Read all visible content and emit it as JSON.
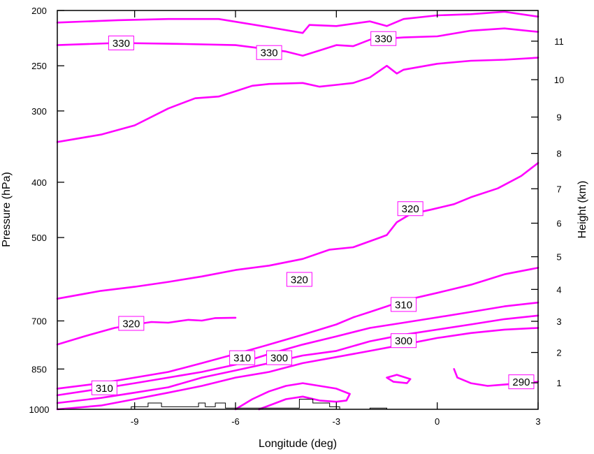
{
  "chart_data": {
    "type": "contour",
    "xlabel": "Longitude (deg)",
    "ylabel_left": "Pressure (hPa)",
    "ylabel_right": "Height (km)",
    "xlim": [
      -11.3,
      3
    ],
    "ylim_pressure": [
      1000,
      200
    ],
    "left_axis_scale": "log-pressure",
    "x_ticks": [
      -9,
      -6,
      -3,
      0,
      3
    ],
    "x_tick_labels": [
      "-9",
      "-6",
      "-3",
      "0",
      "3"
    ],
    "pressure_ticks": [
      200,
      250,
      300,
      400,
      500,
      700,
      850,
      1000
    ],
    "pressure_tick_labels": [
      "200",
      "250",
      "300",
      "400",
      "500",
      "700",
      "850",
      "1000"
    ],
    "height_ticks": [
      1,
      2,
      3,
      4,
      5,
      6,
      7,
      8,
      9,
      10,
      11
    ],
    "height_tick_labels": [
      "1",
      "2",
      "3",
      "4",
      "5",
      "6",
      "7",
      "8",
      "9",
      "10",
      "11"
    ],
    "contour_color": "#ff00ff",
    "terrain_color": "#000000",
    "contours": [
      {
        "value": 330,
        "label": null,
        "points": [
          [
            -11.3,
            210
          ],
          [
            -9.5,
            208
          ],
          [
            -8,
            207
          ],
          [
            -6.5,
            207
          ],
          [
            -5,
            214
          ],
          [
            -4,
            219
          ],
          [
            -3.8,
            212
          ],
          [
            -3,
            213
          ],
          [
            -2,
            209
          ],
          [
            -1.5,
            213
          ],
          [
            -1,
            207
          ],
          [
            0,
            204
          ],
          [
            1,
            203
          ],
          [
            2,
            201
          ],
          [
            3,
            205
          ]
        ]
      },
      {
        "value": 330,
        "label": "330",
        "label_at": [
          -9.4,
          228
        ],
        "label_at2": [
          -5,
          237
        ],
        "label_at3": [
          -1.6,
          224
        ],
        "points": [
          [
            -11.3,
            230
          ],
          [
            -9.5,
            228
          ],
          [
            -7.5,
            229
          ],
          [
            -6,
            230
          ],
          [
            -4.5,
            236
          ],
          [
            -4,
            240
          ],
          [
            -3.5,
            235
          ],
          [
            -3,
            230
          ],
          [
            -2.5,
            231
          ],
          [
            -2,
            225
          ],
          [
            -1,
            223
          ],
          [
            0,
            222
          ],
          [
            1,
            217
          ],
          [
            2,
            215
          ],
          [
            3,
            218
          ]
        ]
      },
      {
        "value": 320,
        "label": null,
        "points": [
          [
            -11.3,
            340
          ],
          [
            -10,
            330
          ],
          [
            -9,
            318
          ],
          [
            -8,
            297
          ],
          [
            -7.2,
            285
          ],
          [
            -6.5,
            283
          ],
          [
            -6,
            277
          ],
          [
            -5.5,
            271
          ],
          [
            -5,
            269
          ],
          [
            -4,
            268
          ],
          [
            -3.5,
            272
          ],
          [
            -3,
            270
          ],
          [
            -2.5,
            268
          ],
          [
            -2,
            262
          ],
          [
            -1.5,
            250
          ],
          [
            -1.2,
            258
          ],
          [
            -1,
            254
          ],
          [
            0,
            248
          ],
          [
            1,
            245
          ],
          [
            2,
            244
          ],
          [
            3,
            242
          ]
        ]
      },
      {
        "value": 320,
        "label": "320",
        "label_at": [
          -0.8,
          445
        ],
        "label_at2": [
          -4.1,
          592
        ],
        "points": [
          [
            -11.3,
            640
          ],
          [
            -10,
            620
          ],
          [
            -9,
            610
          ],
          [
            -8,
            598
          ],
          [
            -7,
            585
          ],
          [
            -6,
            570
          ],
          [
            -5,
            560
          ],
          [
            -4,
            545
          ],
          [
            -3.2,
            525
          ],
          [
            -2.5,
            520
          ],
          [
            -1.7,
            500
          ],
          [
            -1.5,
            495
          ],
          [
            -1.2,
            470
          ],
          [
            -0.8,
            455
          ],
          [
            -0.2,
            447
          ],
          [
            0.5,
            437
          ],
          [
            1,
            425
          ],
          [
            1.8,
            410
          ],
          [
            2.5,
            390
          ],
          [
            3,
            370
          ]
        ]
      },
      {
        "value": 320,
        "label": "320",
        "label_at": [
          -9.1,
          707
        ],
        "points": [
          [
            -11.3,
            770
          ],
          [
            -10.5,
            745
          ],
          [
            -9.6,
            720
          ],
          [
            -9,
            710
          ],
          [
            -8.5,
            703
          ],
          [
            -8,
            705
          ],
          [
            -7.4,
            697
          ],
          [
            -7,
            699
          ],
          [
            -6.6,
            692
          ],
          [
            -6,
            691
          ]
        ]
      },
      {
        "value": 310,
        "label": "310",
        "label_at": [
          -1,
          655
        ],
        "label_at2": [
          -5.8,
          812
        ],
        "label_at3": [
          -9.9,
          917
        ],
        "points": [
          [
            -11.3,
            920
          ],
          [
            -10,
            900
          ],
          [
            -9,
            880
          ],
          [
            -8,
            860
          ],
          [
            -7.5,
            845
          ],
          [
            -7,
            830
          ],
          [
            -6,
            800
          ],
          [
            -5,
            770
          ],
          [
            -4,
            740
          ],
          [
            -3,
            710
          ],
          [
            -2.5,
            690
          ],
          [
            -2,
            675
          ],
          [
            -1.5,
            660
          ],
          [
            -1,
            645
          ],
          [
            0,
            625
          ],
          [
            1,
            605
          ],
          [
            2,
            580
          ],
          [
            3,
            565
          ]
        ]
      },
      {
        "value": 310,
        "label": null,
        "points": [
          [
            -11.3,
            945
          ],
          [
            -10,
            920
          ],
          [
            -9,
            900
          ],
          [
            -8,
            880
          ],
          [
            -7,
            860
          ],
          [
            -6,
            835
          ],
          [
            -5,
            800
          ],
          [
            -4,
            770
          ],
          [
            -3,
            745
          ],
          [
            -2,
            720
          ],
          [
            -1,
            705
          ],
          [
            0,
            690
          ],
          [
            1,
            675
          ],
          [
            2,
            660
          ],
          [
            3,
            650
          ]
        ]
      },
      {
        "value": 300,
        "label": "300",
        "label_at": [
          -4.7,
          812
        ],
        "label_at2": [
          -1,
          758
        ],
        "points": [
          [
            -11.3,
            975
          ],
          [
            -10,
            955
          ],
          [
            -9,
            935
          ],
          [
            -8,
            915
          ],
          [
            -7,
            880
          ],
          [
            -6,
            855
          ],
          [
            -5,
            830
          ],
          [
            -4,
            805
          ],
          [
            -3,
            790
          ],
          [
            -2,
            760
          ],
          [
            -1,
            740
          ],
          [
            0,
            725
          ],
          [
            1,
            710
          ],
          [
            2,
            695
          ],
          [
            3,
            685
          ]
        ]
      },
      {
        "value": 300,
        "label": null,
        "points": [
          [
            -11.3,
            1000
          ],
          [
            -10,
            985
          ],
          [
            -9,
            960
          ],
          [
            -8,
            935
          ],
          [
            -7,
            910
          ],
          [
            -6,
            880
          ],
          [
            -5,
            860
          ],
          [
            -4,
            830
          ],
          [
            -3,
            810
          ],
          [
            -2,
            790
          ],
          [
            -1,
            770
          ],
          [
            0,
            750
          ],
          [
            1,
            735
          ],
          [
            2,
            725
          ],
          [
            3,
            720
          ]
        ]
      },
      {
        "value": 290,
        "label": "290",
        "label_at": [
          2.5,
          895
        ],
        "points": [
          [
            0.5,
            850
          ],
          [
            0.6,
            880
          ],
          [
            1,
            900
          ],
          [
            1.5,
            910
          ],
          [
            2,
            905
          ],
          [
            2.5,
            900
          ],
          [
            3,
            895
          ]
        ]
      },
      {
        "value": 290,
        "label": null,
        "closed": true,
        "points": [
          [
            -1.5,
            880
          ],
          [
            -1.2,
            870
          ],
          [
            -0.8,
            885
          ],
          [
            -0.9,
            900
          ],
          [
            -1.3,
            895
          ],
          [
            -1.5,
            880
          ]
        ]
      },
      {
        "value": 290,
        "label": null,
        "points": [
          [
            -6,
            1000
          ],
          [
            -5.5,
            960
          ],
          [
            -5,
            930
          ],
          [
            -4.5,
            910
          ],
          [
            -4,
            900
          ],
          [
            -3.5,
            910
          ],
          [
            -3,
            920
          ],
          [
            -2.6,
            940
          ],
          [
            -2.7,
            965
          ],
          [
            -3,
            970
          ],
          [
            -3.5,
            965
          ],
          [
            -4,
            950
          ],
          [
            -4.5,
            960
          ],
          [
            -5,
            985
          ],
          [
            -5.3,
            1000
          ]
        ]
      }
    ],
    "terrain_profile": [
      [
        -9.3,
        1000
      ],
      [
        -9.1,
        1000
      ],
      [
        -9.1,
        990
      ],
      [
        -8.6,
        990
      ],
      [
        -8.6,
        975
      ],
      [
        -8.2,
        975
      ],
      [
        -8.2,
        990
      ],
      [
        -7.1,
        990
      ],
      [
        -7.1,
        975
      ],
      [
        -6.9,
        975
      ],
      [
        -6.9,
        990
      ],
      [
        -6.6,
        990
      ],
      [
        -6.6,
        975
      ],
      [
        -6.3,
        975
      ],
      [
        -6.3,
        995
      ],
      [
        -4.1,
        995
      ],
      [
        -4.1,
        960
      ],
      [
        -3.7,
        960
      ],
      [
        -3.7,
        975
      ],
      [
        -3.2,
        975
      ],
      [
        -3.2,
        990
      ],
      [
        -2.9,
        990
      ],
      [
        -2.9,
        1000
      ],
      [
        -2,
        1000
      ],
      [
        -2,
        995
      ],
      [
        -1.5,
        995
      ],
      [
        -1.5,
        1000
      ]
    ]
  }
}
